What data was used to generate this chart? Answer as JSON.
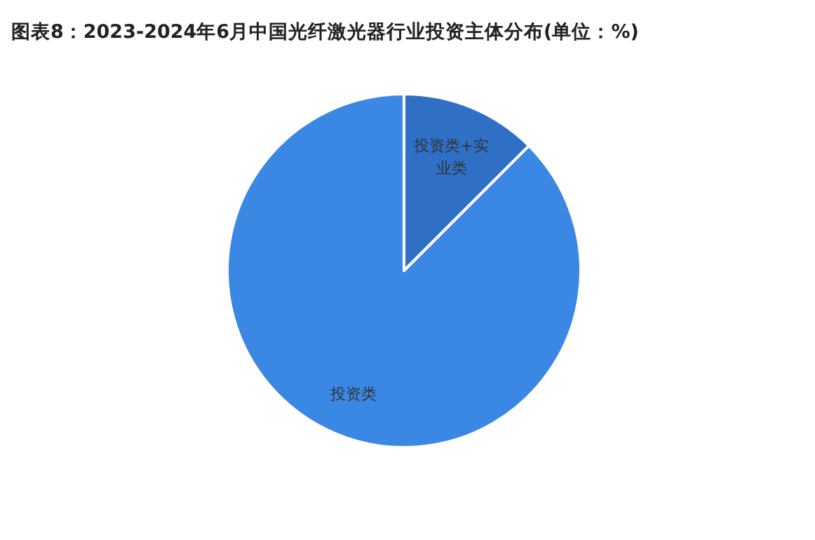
{
  "chart_data": {
    "type": "pie",
    "title": "图表8：2023-2024年6月中国光纤激光器行业投资主体分布(单位：%)",
    "categories": [
      "投资类+实业类",
      "投资类"
    ],
    "values": [
      12.5,
      87.5
    ],
    "colors": [
      "#2f6fc6",
      "#3a87e4"
    ],
    "legend": false
  }
}
